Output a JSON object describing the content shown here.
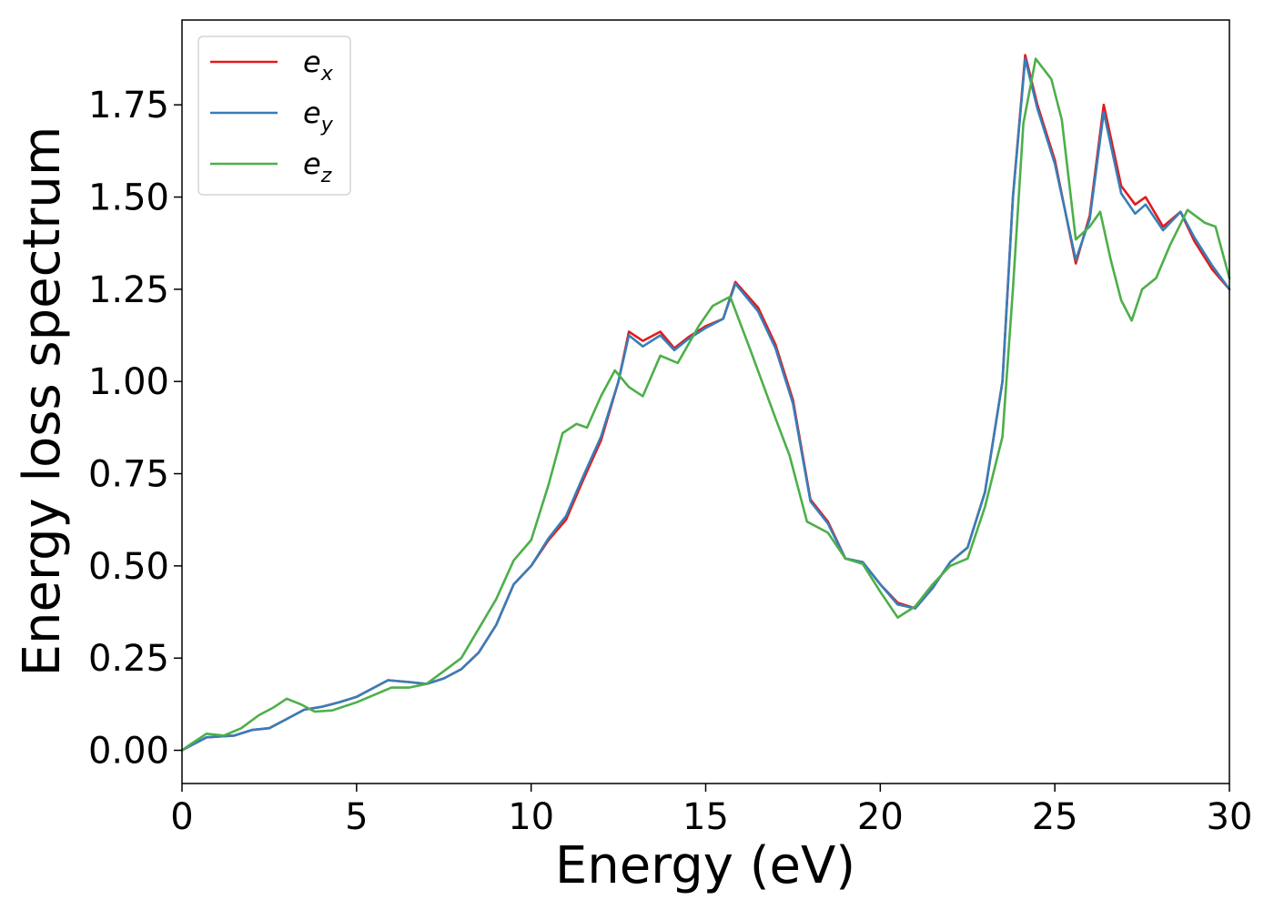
{
  "chart_data": {
    "type": "line",
    "xlabel": "Energy (eV)",
    "ylabel": "Energy loss spectrum",
    "xlim": [
      0,
      30
    ],
    "ylim": [
      -0.09,
      1.98
    ],
    "xticks": [
      0,
      5,
      10,
      15,
      20,
      25,
      30
    ],
    "xtick_labels": [
      "0",
      "5",
      "10",
      "15",
      "20",
      "25",
      "30"
    ],
    "yticks": [
      0.0,
      0.25,
      0.5,
      0.75,
      1.0,
      1.25,
      1.5,
      1.75
    ],
    "ytick_labels": [
      "0.00",
      "0.25",
      "0.50",
      "0.75",
      "1.00",
      "1.25",
      "1.50",
      "1.75"
    ],
    "grid": false,
    "legend_position": "top-left",
    "series": [
      {
        "name": "e",
        "subscript": "x",
        "color": "#e41a1c",
        "points": [
          [
            0,
            0
          ],
          [
            0.3,
            0.015
          ],
          [
            0.7,
            0.035
          ],
          [
            1.5,
            0.04
          ],
          [
            2.0,
            0.055
          ],
          [
            2.5,
            0.06
          ],
          [
            3.0,
            0.085
          ],
          [
            3.5,
            0.11
          ],
          [
            4.0,
            0.118
          ],
          [
            4.5,
            0.13
          ],
          [
            5.0,
            0.145
          ],
          [
            5.5,
            0.17
          ],
          [
            5.9,
            0.19
          ],
          [
            6.5,
            0.185
          ],
          [
            7.0,
            0.18
          ],
          [
            7.5,
            0.195
          ],
          [
            8.0,
            0.22
          ],
          [
            8.5,
            0.265
          ],
          [
            9.0,
            0.34
          ],
          [
            9.5,
            0.45
          ],
          [
            10.0,
            0.5
          ],
          [
            10.5,
            0.57
          ],
          [
            11.0,
            0.625
          ],
          [
            11.5,
            0.735
          ],
          [
            12.0,
            0.84
          ],
          [
            12.5,
            1.0
          ],
          [
            12.8,
            1.135
          ],
          [
            13.2,
            1.11
          ],
          [
            13.7,
            1.135
          ],
          [
            14.1,
            1.09
          ],
          [
            14.5,
            1.12
          ],
          [
            15.0,
            1.15
          ],
          [
            15.5,
            1.17
          ],
          [
            15.85,
            1.27
          ],
          [
            16.5,
            1.2
          ],
          [
            17.0,
            1.1
          ],
          [
            17.5,
            0.95
          ],
          [
            18.0,
            0.68
          ],
          [
            18.5,
            0.62
          ],
          [
            19.0,
            0.52
          ],
          [
            19.5,
            0.51
          ],
          [
            20.0,
            0.45
          ],
          [
            20.5,
            0.4
          ],
          [
            21.0,
            0.385
          ],
          [
            21.5,
            0.44
          ],
          [
            22.0,
            0.51
          ],
          [
            22.5,
            0.55
          ],
          [
            23.0,
            0.7
          ],
          [
            23.5,
            1.0
          ],
          [
            23.8,
            1.5
          ],
          [
            24.15,
            1.885
          ],
          [
            24.5,
            1.75
          ],
          [
            25.0,
            1.6
          ],
          [
            25.6,
            1.32
          ],
          [
            26.0,
            1.45
          ],
          [
            26.4,
            1.75
          ],
          [
            26.9,
            1.53
          ],
          [
            27.3,
            1.48
          ],
          [
            27.6,
            1.5
          ],
          [
            28.1,
            1.42
          ],
          [
            28.6,
            1.46
          ],
          [
            29.0,
            1.38
          ],
          [
            29.5,
            1.305
          ],
          [
            30.0,
            1.25
          ]
        ]
      },
      {
        "name": "e",
        "subscript": "y",
        "color": "#377eb8",
        "points": [
          [
            0,
            0
          ],
          [
            0.3,
            0.015
          ],
          [
            0.7,
            0.035
          ],
          [
            1.5,
            0.04
          ],
          [
            2.0,
            0.055
          ],
          [
            2.5,
            0.06
          ],
          [
            3.0,
            0.085
          ],
          [
            3.5,
            0.11
          ],
          [
            4.0,
            0.118
          ],
          [
            4.5,
            0.13
          ],
          [
            5.0,
            0.145
          ],
          [
            5.5,
            0.17
          ],
          [
            5.9,
            0.19
          ],
          [
            6.5,
            0.185
          ],
          [
            7.0,
            0.18
          ],
          [
            7.5,
            0.195
          ],
          [
            8.0,
            0.22
          ],
          [
            8.5,
            0.265
          ],
          [
            9.0,
            0.34
          ],
          [
            9.5,
            0.45
          ],
          [
            10.0,
            0.5
          ],
          [
            10.5,
            0.575
          ],
          [
            11.0,
            0.635
          ],
          [
            11.5,
            0.745
          ],
          [
            12.0,
            0.85
          ],
          [
            12.5,
            1.0
          ],
          [
            12.8,
            1.125
          ],
          [
            13.2,
            1.095
          ],
          [
            13.7,
            1.125
          ],
          [
            14.1,
            1.085
          ],
          [
            14.5,
            1.115
          ],
          [
            15.0,
            1.145
          ],
          [
            15.5,
            1.17
          ],
          [
            15.85,
            1.265
          ],
          [
            16.5,
            1.19
          ],
          [
            17.0,
            1.09
          ],
          [
            17.5,
            0.94
          ],
          [
            18.0,
            0.675
          ],
          [
            18.5,
            0.615
          ],
          [
            19.0,
            0.52
          ],
          [
            19.5,
            0.51
          ],
          [
            20.0,
            0.45
          ],
          [
            20.5,
            0.395
          ],
          [
            21.0,
            0.385
          ],
          [
            21.5,
            0.44
          ],
          [
            22.0,
            0.51
          ],
          [
            22.5,
            0.55
          ],
          [
            23.0,
            0.7
          ],
          [
            23.5,
            1.0
          ],
          [
            23.8,
            1.5
          ],
          [
            24.15,
            1.875
          ],
          [
            24.5,
            1.74
          ],
          [
            25.0,
            1.59
          ],
          [
            25.6,
            1.33
          ],
          [
            26.0,
            1.44
          ],
          [
            26.4,
            1.73
          ],
          [
            26.9,
            1.51
          ],
          [
            27.3,
            1.455
          ],
          [
            27.6,
            1.48
          ],
          [
            28.1,
            1.41
          ],
          [
            28.6,
            1.46
          ],
          [
            29.0,
            1.39
          ],
          [
            29.5,
            1.315
          ],
          [
            30.0,
            1.25
          ]
        ]
      },
      {
        "name": "e",
        "subscript": "z",
        "color": "#4daf4a",
        "points": [
          [
            0,
            0
          ],
          [
            0.3,
            0.02
          ],
          [
            0.7,
            0.045
          ],
          [
            1.2,
            0.04
          ],
          [
            1.7,
            0.06
          ],
          [
            2.2,
            0.095
          ],
          [
            2.6,
            0.115
          ],
          [
            3.0,
            0.14
          ],
          [
            3.4,
            0.125
          ],
          [
            3.8,
            0.105
          ],
          [
            4.3,
            0.108
          ],
          [
            5.0,
            0.13
          ],
          [
            5.5,
            0.15
          ],
          [
            6.0,
            0.17
          ],
          [
            6.5,
            0.17
          ],
          [
            7.0,
            0.18
          ],
          [
            7.5,
            0.215
          ],
          [
            8.0,
            0.25
          ],
          [
            8.5,
            0.33
          ],
          [
            9.0,
            0.41
          ],
          [
            9.5,
            0.515
          ],
          [
            10.0,
            0.57
          ],
          [
            10.5,
            0.72
          ],
          [
            10.9,
            0.86
          ],
          [
            11.3,
            0.885
          ],
          [
            11.6,
            0.875
          ],
          [
            12.0,
            0.96
          ],
          [
            12.4,
            1.03
          ],
          [
            12.8,
            0.985
          ],
          [
            13.2,
            0.96
          ],
          [
            13.7,
            1.07
          ],
          [
            14.2,
            1.05
          ],
          [
            14.8,
            1.15
          ],
          [
            15.2,
            1.205
          ],
          [
            15.7,
            1.23
          ],
          [
            16.3,
            1.08
          ],
          [
            17.0,
            0.9
          ],
          [
            17.4,
            0.8
          ],
          [
            17.9,
            0.62
          ],
          [
            18.5,
            0.59
          ],
          [
            19.0,
            0.52
          ],
          [
            19.5,
            0.505
          ],
          [
            20.0,
            0.43
          ],
          [
            20.5,
            0.36
          ],
          [
            21.0,
            0.39
          ],
          [
            21.5,
            0.45
          ],
          [
            22.0,
            0.5
          ],
          [
            22.5,
            0.52
          ],
          [
            23.0,
            0.66
          ],
          [
            23.5,
            0.85
          ],
          [
            23.8,
            1.25
          ],
          [
            24.1,
            1.7
          ],
          [
            24.45,
            1.875
          ],
          [
            24.9,
            1.82
          ],
          [
            25.2,
            1.71
          ],
          [
            25.6,
            1.385
          ],
          [
            26.0,
            1.42
          ],
          [
            26.3,
            1.46
          ],
          [
            26.6,
            1.33
          ],
          [
            26.9,
            1.22
          ],
          [
            27.2,
            1.165
          ],
          [
            27.5,
            1.25
          ],
          [
            27.9,
            1.28
          ],
          [
            28.3,
            1.37
          ],
          [
            28.8,
            1.465
          ],
          [
            29.3,
            1.43
          ],
          [
            29.6,
            1.42
          ],
          [
            30.0,
            1.28
          ]
        ]
      }
    ]
  }
}
